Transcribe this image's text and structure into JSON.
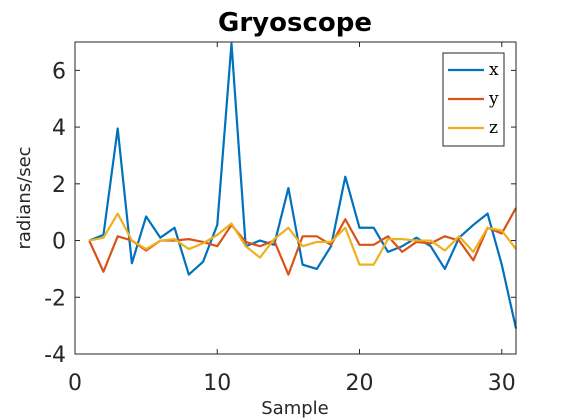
{
  "chart_data": {
    "type": "line",
    "title": "Gryoscope",
    "xlabel": "Sample",
    "ylabel": "radians/sec",
    "xlim": [
      0,
      31
    ],
    "ylim": [
      -4,
      7
    ],
    "xticks": [
      0,
      10,
      20,
      30
    ],
    "yticks": [
      -4,
      -2,
      0,
      2,
      4,
      6
    ],
    "grid": false,
    "legend_position": "top-right",
    "x": [
      1,
      2,
      3,
      4,
      5,
      6,
      7,
      8,
      9,
      10,
      11,
      12,
      13,
      14,
      15,
      16,
      17,
      18,
      19,
      20,
      21,
      22,
      23,
      24,
      25,
      26,
      27,
      28,
      29,
      30,
      31
    ],
    "series": [
      {
        "name": "x",
        "color": "#0072BD",
        "values": [
          0,
          0.2,
          3.95,
          -0.8,
          0.85,
          0.1,
          0.45,
          -1.2,
          -0.75,
          0.55,
          6.95,
          -0.2,
          0,
          -0.15,
          1.85,
          -0.85,
          -1.0,
          -0.2,
          2.25,
          0.45,
          0.45,
          -0.4,
          -0.2,
          0.1,
          -0.2,
          -1.0,
          0.1,
          0.55,
          0.95,
          -0.85,
          -3.1
        ]
      },
      {
        "name": "y",
        "color": "#D95319",
        "values": [
          0,
          -1.1,
          0.15,
          0,
          -0.35,
          0,
          0,
          0.05,
          -0.05,
          -0.2,
          0.55,
          -0.05,
          -0.2,
          0,
          -1.2,
          0.15,
          0.15,
          -0.15,
          0.75,
          -0.15,
          -0.15,
          0.15,
          -0.4,
          -0.05,
          -0.1,
          0.15,
          0,
          -0.7,
          0.45,
          0.25,
          1.15
        ]
      },
      {
        "name": "z",
        "color": "#EDB120",
        "values": [
          0,
          0.1,
          0.95,
          0,
          -0.3,
          0,
          0.05,
          -0.3,
          -0.1,
          0.2,
          0.6,
          -0.2,
          -0.6,
          0.05,
          0.45,
          -0.2,
          -0.05,
          -0.05,
          0.45,
          -0.85,
          -0.85,
          0.05,
          0.05,
          0,
          0,
          -0.35,
          0.15,
          -0.4,
          0.45,
          0.35,
          -0.3
        ]
      }
    ]
  }
}
